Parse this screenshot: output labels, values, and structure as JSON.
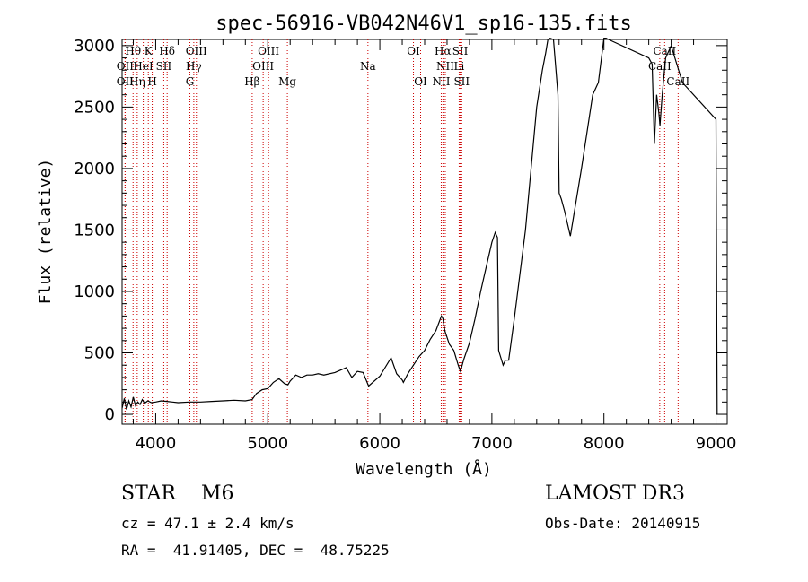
{
  "chart_data": {
    "type": "line",
    "title": "spec-56916-VB042N46V1_sp16-135.fits",
    "xlabel": "Wavelength (Å)",
    "ylabel": "Flux (relative)",
    "xlim": [
      3700,
      9100
    ],
    "ylim": [
      -80,
      3050
    ],
    "xticks": [
      4000,
      5000,
      6000,
      7000,
      8000,
      9000
    ],
    "yticks": [
      0,
      500,
      1000,
      1500,
      2000,
      2500,
      3000
    ],
    "spectrum": {
      "x": [
        3700,
        3720,
        3740,
        3760,
        3780,
        3800,
        3820,
        3840,
        3860,
        3880,
        3900,
        3930,
        3960,
        4000,
        4050,
        4100,
        4150,
        4200,
        4300,
        4400,
        4500,
        4600,
        4700,
        4800,
        4860,
        4900,
        4950,
        5000,
        5050,
        5100,
        5150,
        5180,
        5200,
        5250,
        5300,
        5350,
        5400,
        5450,
        5500,
        5600,
        5700,
        5750,
        5800,
        5850,
        5900,
        6000,
        6100,
        6150,
        6200,
        6210,
        6250,
        6300,
        6350,
        6400,
        6450,
        6500,
        6550,
        6563,
        6580,
        6620,
        6660,
        6700,
        6720,
        6750,
        6800,
        6850,
        6900,
        6950,
        7000,
        7030,
        7050,
        7060,
        7080,
        7100,
        7120,
        7150,
        7200,
        7300,
        7400,
        7450,
        7480,
        7500,
        7520,
        7550,
        7590,
        7600,
        7620,
        7650,
        7700,
        7800,
        7900,
        7950,
        8000,
        8020,
        8040,
        8400,
        8430,
        8450,
        8470,
        8490,
        8500,
        8520,
        8550,
        8600,
        8700,
        9000,
        9010
      ],
      "y": [
        50,
        130,
        40,
        110,
        60,
        140,
        70,
        100,
        80,
        120,
        90,
        110,
        95,
        100,
        110,
        105,
        100,
        95,
        100,
        100,
        105,
        110,
        115,
        110,
        120,
        170,
        200,
        210,
        260,
        290,
        250,
        240,
        270,
        320,
        300,
        320,
        320,
        330,
        320,
        340,
        380,
        300,
        350,
        340,
        230,
        310,
        460,
        330,
        280,
        260,
        330,
        400,
        470,
        520,
        610,
        680,
        800,
        780,
        680,
        570,
        520,
        400,
        350,
        450,
        580,
        780,
        1000,
        1200,
        1400,
        1480,
        1440,
        520,
        460,
        400,
        440,
        440,
        780,
        1500,
        2500,
        2800,
        2940,
        3050,
        3060,
        3050,
        2600,
        1800,
        1750,
        1650,
        1450,
        2000,
        2600,
        2700,
        3060,
        3060,
        3050,
        2900,
        2850,
        2200,
        2600,
        2450,
        2350,
        2600,
        2900,
        3000,
        2700,
        2400,
        0
      ]
    },
    "lines": [
      {
        "label": "Hθ",
        "wl": 3798,
        "row": 0
      },
      {
        "label": "OII",
        "wl": 3727,
        "row": 1
      },
      {
        "label": "OII",
        "wl": 3727,
        "row": 2
      },
      {
        "label": "Hη",
        "wl": 3835,
        "row": 2
      },
      {
        "label": "HeI",
        "wl": 3889,
        "row": 1
      },
      {
        "label": "K",
        "wl": 3934,
        "row": 0
      },
      {
        "label": "H",
        "wl": 3969,
        "row": 2
      },
      {
        "label": "SII",
        "wl": 4072,
        "row": 1
      },
      {
        "label": "Hδ",
        "wl": 4102,
        "row": 0
      },
      {
        "label": "OIII",
        "wl": 4363,
        "row": 0
      },
      {
        "label": "Hγ",
        "wl": 4340,
        "row": 1
      },
      {
        "label": "G",
        "wl": 4305,
        "row": 2
      },
      {
        "label": "Hβ",
        "wl": 4861,
        "row": 2
      },
      {
        "label": "OIII",
        "wl": 5007,
        "row": 0
      },
      {
        "label": "OIII",
        "wl": 4959,
        "row": 1
      },
      {
        "label": "Mg",
        "wl": 5175,
        "row": 2
      },
      {
        "label": "Na",
        "wl": 5894,
        "row": 1
      },
      {
        "label": "OI",
        "wl": 6300,
        "row": 0
      },
      {
        "label": "OI",
        "wl": 6364,
        "row": 2
      },
      {
        "label": "Hα",
        "wl": 6563,
        "row": 0
      },
      {
        "label": "SII",
        "wl": 6717,
        "row": 0
      },
      {
        "label": "NII",
        "wl": 6584,
        "row": 1
      },
      {
        "label": "Li",
        "wl": 6708,
        "row": 1
      },
      {
        "label": "NII",
        "wl": 6548,
        "row": 2
      },
      {
        "label": "SII",
        "wl": 6731,
        "row": 2
      },
      {
        "label": "CaII",
        "wl": 8542,
        "row": 0
      },
      {
        "label": "CaII",
        "wl": 8498,
        "row": 1
      },
      {
        "label": "CaII",
        "wl": 8662,
        "row": 2
      }
    ],
    "line_color": "#cc0000"
  },
  "info": {
    "class_line": "STAR    M6",
    "survey": "LAMOST DR3",
    "cz": "cz = 47.1 ± 2.4 km/s",
    "obs_date": "Obs-Date: 20140915",
    "coords": "RA =  41.91405, DEC =  48.75225"
  }
}
